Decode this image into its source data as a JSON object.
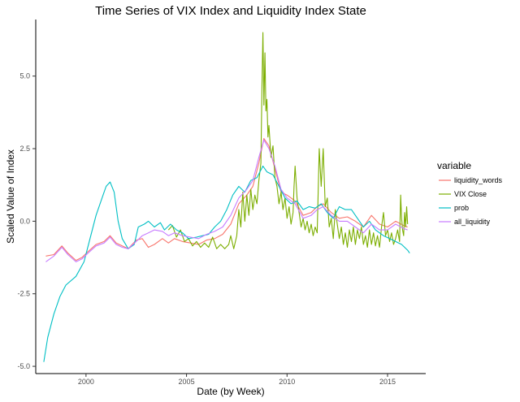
{
  "chart_data": {
    "type": "line",
    "title": "Time Series of VIX Index and Liquidity Index State",
    "xlabel": "Date (by Week)",
    "ylabel": "Scaled Value of Index",
    "xlim": [
      1997.5,
      2016.9
    ],
    "ylim": [
      -5.25,
      6.95
    ],
    "xticks": [
      2000,
      2005,
      2010,
      2015
    ],
    "yticks": [
      -5.0,
      -2.5,
      0.0,
      2.5,
      5.0
    ],
    "ytick_labels": [
      "-5.0",
      "-2.5",
      "0.0",
      "2.5",
      "5.0"
    ],
    "grid": false,
    "legend": {
      "title": "variable",
      "position": "right"
    },
    "series": [
      {
        "name": "liquidity_words",
        "color": "#F8766D",
        "points": [
          [
            1998.0,
            -1.2
          ],
          [
            1998.4,
            -1.15
          ],
          [
            1998.8,
            -0.85
          ],
          [
            1999.1,
            -1.1
          ],
          [
            1999.5,
            -1.35
          ],
          [
            1999.8,
            -1.25
          ],
          [
            2000.1,
            -1.05
          ],
          [
            2000.5,
            -0.8
          ],
          [
            2000.9,
            -0.7
          ],
          [
            2001.2,
            -0.5
          ],
          [
            2001.5,
            -0.75
          ],
          [
            2001.8,
            -0.85
          ],
          [
            2002.1,
            -0.95
          ],
          [
            2002.5,
            -0.65
          ],
          [
            2002.8,
            -0.6
          ],
          [
            2003.1,
            -0.9
          ],
          [
            2003.4,
            -0.8
          ],
          [
            2003.8,
            -0.6
          ],
          [
            2004.1,
            -0.75
          ],
          [
            2004.4,
            -0.6
          ],
          [
            2004.8,
            -0.7
          ],
          [
            2005.2,
            -0.75
          ],
          [
            2005.6,
            -0.8
          ],
          [
            2006.0,
            -0.65
          ],
          [
            2006.4,
            -0.6
          ],
          [
            2006.8,
            -0.45
          ],
          [
            2007.2,
            -0.1
          ],
          [
            2007.6,
            0.6
          ],
          [
            2008.0,
            0.9
          ],
          [
            2008.3,
            1.2
          ],
          [
            2008.6,
            2.0
          ],
          [
            2008.85,
            2.85
          ],
          [
            2009.1,
            2.6
          ],
          [
            2009.4,
            1.8
          ],
          [
            2009.7,
            1.0
          ],
          [
            2010.0,
            0.9
          ],
          [
            2010.4,
            0.7
          ],
          [
            2010.8,
            0.2
          ],
          [
            2011.2,
            0.3
          ],
          [
            2011.5,
            0.5
          ],
          [
            2011.8,
            0.6
          ],
          [
            2012.2,
            0.3
          ],
          [
            2012.6,
            0.1
          ],
          [
            2013.0,
            0.15
          ],
          [
            2013.4,
            0.0
          ],
          [
            2013.8,
            -0.2
          ],
          [
            2014.2,
            0.2
          ],
          [
            2014.6,
            -0.1
          ],
          [
            2015.0,
            -0.2
          ],
          [
            2015.4,
            0.0
          ],
          [
            2015.8,
            -0.15
          ],
          [
            2016.0,
            -0.2
          ]
        ]
      },
      {
        "name": "VIX Close",
        "color": "#7CAE00",
        "points": [
          [
            2004.1,
            -0.3
          ],
          [
            2004.3,
            -0.15
          ],
          [
            2004.5,
            -0.55
          ],
          [
            2004.7,
            -0.3
          ],
          [
            2004.9,
            -0.7
          ],
          [
            2005.1,
            -0.6
          ],
          [
            2005.3,
            -0.85
          ],
          [
            2005.5,
            -0.7
          ],
          [
            2005.7,
            -0.9
          ],
          [
            2005.9,
            -0.75
          ],
          [
            2006.1,
            -0.9
          ],
          [
            2006.3,
            -0.55
          ],
          [
            2006.5,
            -0.95
          ],
          [
            2006.7,
            -0.8
          ],
          [
            2006.9,
            -0.95
          ],
          [
            2007.1,
            -0.8
          ],
          [
            2007.2,
            -0.5
          ],
          [
            2007.35,
            -0.95
          ],
          [
            2007.5,
            -0.5
          ],
          [
            2007.6,
            0.4
          ],
          [
            2007.7,
            -0.2
          ],
          [
            2007.8,
            1.0
          ],
          [
            2007.9,
            0.0
          ],
          [
            2008.0,
            0.9
          ],
          [
            2008.1,
            0.2
          ],
          [
            2008.2,
            1.1
          ],
          [
            2008.3,
            0.4
          ],
          [
            2008.4,
            0.9
          ],
          [
            2008.5,
            0.6
          ],
          [
            2008.6,
            1.4
          ],
          [
            2008.7,
            2.0
          ],
          [
            2008.75,
            4.6
          ],
          [
            2008.8,
            6.5
          ],
          [
            2008.85,
            4.0
          ],
          [
            2008.9,
            5.8
          ],
          [
            2008.95,
            3.8
          ],
          [
            2009.0,
            4.2
          ],
          [
            2009.05,
            2.9
          ],
          [
            2009.1,
            3.3
          ],
          [
            2009.2,
            2.2
          ],
          [
            2009.3,
            2.6
          ],
          [
            2009.4,
            1.5
          ],
          [
            2009.5,
            1.2
          ],
          [
            2009.6,
            0.6
          ],
          [
            2009.7,
            1.0
          ],
          [
            2009.8,
            0.4
          ],
          [
            2009.9,
            0.8
          ],
          [
            2010.0,
            0.1
          ],
          [
            2010.1,
            0.5
          ],
          [
            2010.2,
            -0.1
          ],
          [
            2010.3,
            0.3
          ],
          [
            2010.35,
            1.2
          ],
          [
            2010.4,
            1.9
          ],
          [
            2010.5,
            0.8
          ],
          [
            2010.6,
            0.3
          ],
          [
            2010.7,
            -0.2
          ],
          [
            2010.8,
            0.1
          ],
          [
            2010.9,
            -0.3
          ],
          [
            2011.0,
            0.0
          ],
          [
            2011.1,
            -0.4
          ],
          [
            2011.2,
            -0.1
          ],
          [
            2011.3,
            -0.5
          ],
          [
            2011.4,
            -0.2
          ],
          [
            2011.5,
            -0.4
          ],
          [
            2011.55,
            1.0
          ],
          [
            2011.6,
            2.5
          ],
          [
            2011.7,
            1.2
          ],
          [
            2011.8,
            2.5
          ],
          [
            2011.9,
            0.5
          ],
          [
            2012.0,
            0.8
          ],
          [
            2012.1,
            -0.2
          ],
          [
            2012.2,
            0.1
          ],
          [
            2012.3,
            -0.6
          ],
          [
            2012.4,
            0.4
          ],
          [
            2012.5,
            -0.1
          ],
          [
            2012.6,
            -0.6
          ],
          [
            2012.7,
            -0.2
          ],
          [
            2012.8,
            -0.8
          ],
          [
            2012.9,
            -0.4
          ],
          [
            2013.0,
            -0.9
          ],
          [
            2013.1,
            -0.3
          ],
          [
            2013.2,
            -0.7
          ],
          [
            2013.3,
            -0.2
          ],
          [
            2013.4,
            -0.8
          ],
          [
            2013.5,
            -0.3
          ],
          [
            2013.6,
            -0.6
          ],
          [
            2013.7,
            -0.2
          ],
          [
            2013.8,
            -0.8
          ],
          [
            2013.9,
            -0.5
          ],
          [
            2014.0,
            -0.9
          ],
          [
            2014.1,
            -0.3
          ],
          [
            2014.2,
            -0.8
          ],
          [
            2014.3,
            -0.4
          ],
          [
            2014.4,
            -0.85
          ],
          [
            2014.5,
            -0.5
          ],
          [
            2014.6,
            -0.9
          ],
          [
            2014.7,
            -0.2
          ],
          [
            2014.8,
            0.3
          ],
          [
            2014.9,
            -0.5
          ],
          [
            2015.0,
            -0.3
          ],
          [
            2015.1,
            -0.7
          ],
          [
            2015.2,
            -0.4
          ],
          [
            2015.3,
            -0.8
          ],
          [
            2015.4,
            -0.6
          ],
          [
            2015.5,
            -0.3
          ],
          [
            2015.6,
            -0.7
          ],
          [
            2015.65,
            0.9
          ],
          [
            2015.7,
            0.1
          ],
          [
            2015.75,
            -0.3
          ],
          [
            2015.8,
            -0.5
          ],
          [
            2015.85,
            0.3
          ],
          [
            2015.9,
            -0.2
          ],
          [
            2015.95,
            0.5
          ],
          [
            2016.0,
            -0.1
          ]
        ]
      },
      {
        "name": "prob",
        "color": "#00BFC4",
        "points": [
          [
            1997.9,
            -4.85
          ],
          [
            1998.1,
            -4.0
          ],
          [
            1998.4,
            -3.2
          ],
          [
            1998.7,
            -2.6
          ],
          [
            1999.0,
            -2.2
          ],
          [
            1999.5,
            -1.9
          ],
          [
            1999.9,
            -1.4
          ],
          [
            2000.2,
            -0.6
          ],
          [
            2000.5,
            0.2
          ],
          [
            2000.8,
            0.8
          ],
          [
            2001.0,
            1.2
          ],
          [
            2001.2,
            1.35
          ],
          [
            2001.4,
            1.0
          ],
          [
            2001.6,
            0.0
          ],
          [
            2001.8,
            -0.6
          ],
          [
            2002.1,
            -0.95
          ],
          [
            2002.4,
            -0.8
          ],
          [
            2002.6,
            -0.2
          ],
          [
            2002.9,
            -0.1
          ],
          [
            2003.1,
            0.0
          ],
          [
            2003.4,
            -0.2
          ],
          [
            2003.7,
            -0.05
          ],
          [
            2003.9,
            -0.3
          ],
          [
            2004.2,
            -0.1
          ],
          [
            2004.5,
            -0.3
          ],
          [
            2004.8,
            -0.4
          ],
          [
            2005.1,
            -0.6
          ],
          [
            2005.5,
            -0.55
          ],
          [
            2005.8,
            -0.5
          ],
          [
            2006.1,
            -0.45
          ],
          [
            2006.4,
            -0.2
          ],
          [
            2006.7,
            0.0
          ],
          [
            2007.0,
            0.4
          ],
          [
            2007.3,
            0.9
          ],
          [
            2007.6,
            1.2
          ],
          [
            2007.9,
            1.0
          ],
          [
            2008.2,
            1.4
          ],
          [
            2008.5,
            1.5
          ],
          [
            2008.8,
            1.9
          ],
          [
            2009.0,
            1.7
          ],
          [
            2009.3,
            1.6
          ],
          [
            2009.6,
            1.2
          ],
          [
            2009.9,
            0.8
          ],
          [
            2010.2,
            0.6
          ],
          [
            2010.5,
            0.7
          ],
          [
            2010.8,
            0.4
          ],
          [
            2011.1,
            0.5
          ],
          [
            2011.4,
            0.45
          ],
          [
            2011.7,
            0.6
          ],
          [
            2012.0,
            0.3
          ],
          [
            2012.3,
            0.1
          ],
          [
            2012.6,
            0.5
          ],
          [
            2012.9,
            0.4
          ],
          [
            2013.2,
            0.4
          ],
          [
            2013.5,
            0.1
          ],
          [
            2013.8,
            -0.2
          ],
          [
            2014.1,
            0.0
          ],
          [
            2014.4,
            -0.3
          ],
          [
            2014.8,
            -0.5
          ],
          [
            2015.1,
            -0.6
          ],
          [
            2015.4,
            -0.7
          ],
          [
            2015.7,
            -0.8
          ],
          [
            2016.0,
            -1.0
          ],
          [
            2016.1,
            -1.1
          ]
        ]
      },
      {
        "name": "all_liquidity",
        "color": "#C77CFF",
        "points": [
          [
            1998.0,
            -1.4
          ],
          [
            1998.4,
            -1.2
          ],
          [
            1998.8,
            -0.9
          ],
          [
            1999.1,
            -1.15
          ],
          [
            1999.5,
            -1.4
          ],
          [
            1999.8,
            -1.3
          ],
          [
            2000.1,
            -1.1
          ],
          [
            2000.5,
            -0.85
          ],
          [
            2000.9,
            -0.75
          ],
          [
            2001.2,
            -0.55
          ],
          [
            2001.5,
            -0.8
          ],
          [
            2001.8,
            -0.9
          ],
          [
            2002.1,
            -0.95
          ],
          [
            2002.5,
            -0.7
          ],
          [
            2002.8,
            -0.5
          ],
          [
            2003.1,
            -0.4
          ],
          [
            2003.4,
            -0.3
          ],
          [
            2003.8,
            -0.35
          ],
          [
            2004.1,
            -0.5
          ],
          [
            2004.4,
            -0.4
          ],
          [
            2004.8,
            -0.5
          ],
          [
            2005.2,
            -0.55
          ],
          [
            2005.6,
            -0.6
          ],
          [
            2006.0,
            -0.45
          ],
          [
            2006.4,
            -0.35
          ],
          [
            2006.8,
            -0.2
          ],
          [
            2007.2,
            0.2
          ],
          [
            2007.6,
            0.8
          ],
          [
            2008.0,
            1.1
          ],
          [
            2008.3,
            1.4
          ],
          [
            2008.6,
            2.2
          ],
          [
            2008.85,
            2.8
          ],
          [
            2009.1,
            2.5
          ],
          [
            2009.4,
            1.9
          ],
          [
            2009.7,
            1.1
          ],
          [
            2010.0,
            0.8
          ],
          [
            2010.4,
            0.6
          ],
          [
            2010.8,
            0.1
          ],
          [
            2011.2,
            0.2
          ],
          [
            2011.5,
            0.4
          ],
          [
            2011.8,
            0.5
          ],
          [
            2012.2,
            0.2
          ],
          [
            2012.6,
            0.0
          ],
          [
            2013.0,
            0.0
          ],
          [
            2013.4,
            -0.2
          ],
          [
            2013.8,
            -0.4
          ],
          [
            2014.2,
            -0.1
          ],
          [
            2014.6,
            -0.3
          ],
          [
            2015.0,
            -0.3
          ],
          [
            2015.4,
            -0.1
          ],
          [
            2015.8,
            -0.25
          ],
          [
            2016.0,
            -0.3
          ]
        ]
      }
    ]
  }
}
